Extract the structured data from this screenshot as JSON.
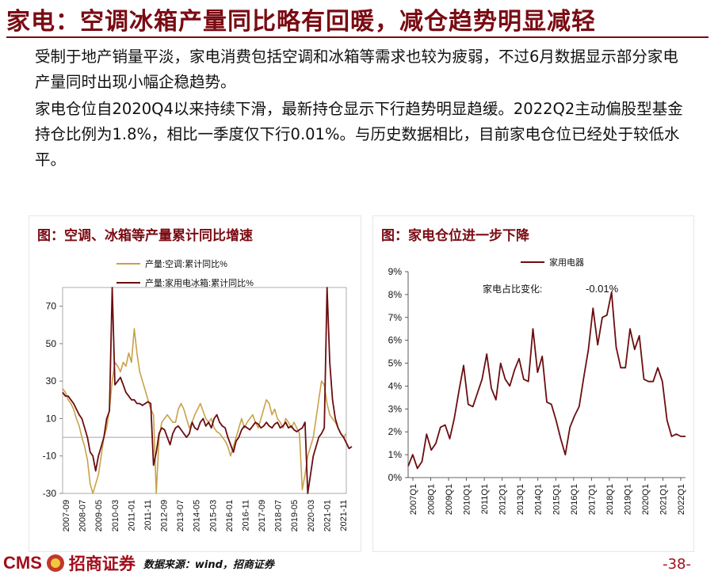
{
  "title": "家电：空调冰箱产量同比略有回暖，减仓趋势明显减轻",
  "paragraphs": [
    "受制于地产销量平淡，家电消费包括空调和冰箱等需求也较为疲弱，不过6月数据显示部分家电产量同时出现小幅企稳趋势。",
    "家电仓位自2020Q4以来持续下滑，最新持仓显示下行趋势明显趋缓。2022Q2主动偏股型基金持仓比例为1.8%，相比一季度仅下行0.01%。与历史数据相比，目前家电仓位已经处于较低水平。"
  ],
  "colors": {
    "brand": "#7a0b13",
    "series_gold": "#c8a24a",
    "series_maroon": "#6b0d10"
  },
  "chart_left_title": "图：空调、冰箱等产量累计同比增速",
  "chart_right_title": "图：家电仓位进一步下降",
  "chart_right_annotation_label": "家电占比变化:",
  "chart_right_annotation_value": "-0.01%",
  "chart_data": [
    {
      "type": "line",
      "title": "图：空调、冰箱等产量累计同比增速",
      "ylim": [
        -30,
        80
      ],
      "yticks": [
        -30,
        -10,
        10,
        30,
        50,
        70
      ],
      "xticks": [
        "2007-09",
        "2008-07",
        "2009-05",
        "2010-03",
        "2011-01",
        "2011-11",
        "2012-09",
        "2013-07",
        "2014-05",
        "2015-03",
        "2016-01",
        "2016-11",
        "2017-09",
        "2018-07",
        "2019-05",
        "2020-03",
        "2021-01",
        "2021-11"
      ],
      "x_start": "2007-09",
      "x_end": "2022-06",
      "legend": "top-left",
      "series": [
        {
          "name": "产量:空调:累计同比%",
          "color": "#c8a24a",
          "values": [
            26,
            24,
            20,
            18,
            15,
            10,
            6,
            0,
            -5,
            -12,
            -25,
            -30,
            -25,
            -20,
            -10,
            0,
            5,
            15,
            30,
            40,
            38,
            35,
            40,
            38,
            45,
            40,
            58,
            45,
            35,
            30,
            25,
            20,
            15,
            12,
            -30,
            0,
            8,
            10,
            12,
            10,
            8,
            8,
            15,
            18,
            15,
            10,
            5,
            8,
            12,
            15,
            18,
            14,
            10,
            8,
            10,
            5,
            3,
            2,
            0,
            -2,
            -5,
            -10,
            -5,
            0,
            5,
            10,
            5,
            8,
            10,
            12,
            8,
            5,
            10,
            15,
            20,
            18,
            12,
            15,
            10,
            8,
            5,
            10,
            8,
            5,
            8,
            5,
            2,
            -28,
            -20,
            -10,
            -5,
            0,
            10,
            20,
            30,
            28,
            18,
            12,
            10,
            8,
            5,
            2,
            0,
            2
          ]
        },
        {
          "name": "产量:家用电冰箱:累计同比%",
          "color": "#6b0d10",
          "values": [
            24,
            22,
            22,
            20,
            18,
            15,
            12,
            10,
            5,
            0,
            -8,
            -10,
            -18,
            -10,
            -5,
            0,
            10,
            14,
            80,
            28,
            30,
            32,
            28,
            24,
            22,
            20,
            20,
            18,
            18,
            17,
            18,
            19,
            18,
            -15,
            -8,
            2,
            5,
            4,
            0,
            -4,
            2,
            5,
            6,
            4,
            2,
            0,
            2,
            8,
            5,
            4,
            8,
            10,
            6,
            8,
            5,
            10,
            12,
            8,
            6,
            5,
            0,
            -4,
            -8,
            -2,
            0,
            4,
            6,
            5,
            4,
            6,
            8,
            7,
            5,
            6,
            8,
            6,
            5,
            7,
            8,
            5,
            6,
            8,
            5,
            6,
            4,
            3,
            4,
            5,
            8,
            -30,
            -20,
            -10,
            -5,
            0,
            2,
            5,
            80,
            40,
            20,
            10,
            5,
            2,
            0,
            -3,
            -6,
            -5
          ]
        }
      ]
    },
    {
      "type": "line",
      "title": "图：家电仓位进一步下降",
      "ylim": [
        0,
        9
      ],
      "ytick_labels": [
        "0%",
        "1%",
        "2%",
        "3%",
        "4%",
        "5%",
        "6%",
        "7%",
        "8%",
        "9%"
      ],
      "xticks": [
        "2007Q1",
        "2008Q1",
        "2009Q1",
        "2010Q1",
        "2011Q1",
        "2012Q1",
        "2013Q1",
        "2014Q1",
        "2015Q1",
        "2016Q1",
        "2017Q1",
        "2018Q1",
        "2019Q1",
        "2020Q1",
        "2021Q1",
        "2022Q1"
      ],
      "x_start": "2007Q1",
      "legend": "top-center",
      "series": [
        {
          "name": "家用电器",
          "color": "#6b0d10",
          "values": [
            0.5,
            1.0,
            0.4,
            0.7,
            1.9,
            1.2,
            1.5,
            2.2,
            2.3,
            1.7,
            2.6,
            3.8,
            4.9,
            3.2,
            3.1,
            3.7,
            4.3,
            5.4,
            3.9,
            3.4,
            5.0,
            4.3,
            4.0,
            4.7,
            5.2,
            4.3,
            4.2,
            6.5,
            4.6,
            5.3,
            3.3,
            3.2,
            2.5,
            1.7,
            1.0,
            2.2,
            2.7,
            3.1,
            4.4,
            5.6,
            7.4,
            5.8,
            7.0,
            7.1,
            8.1,
            5.7,
            4.8,
            4.8,
            6.5,
            5.6,
            6.2,
            4.3,
            4.2,
            4.2,
            4.8,
            4.2,
            2.5,
            1.8,
            1.9,
            1.8,
            1.8
          ]
        }
      ]
    }
  ],
  "footer": {
    "logo_text": "CMS",
    "brand_cn": "招商证券",
    "source": "数据来源：wind，招商证券",
    "page": "-38-"
  }
}
